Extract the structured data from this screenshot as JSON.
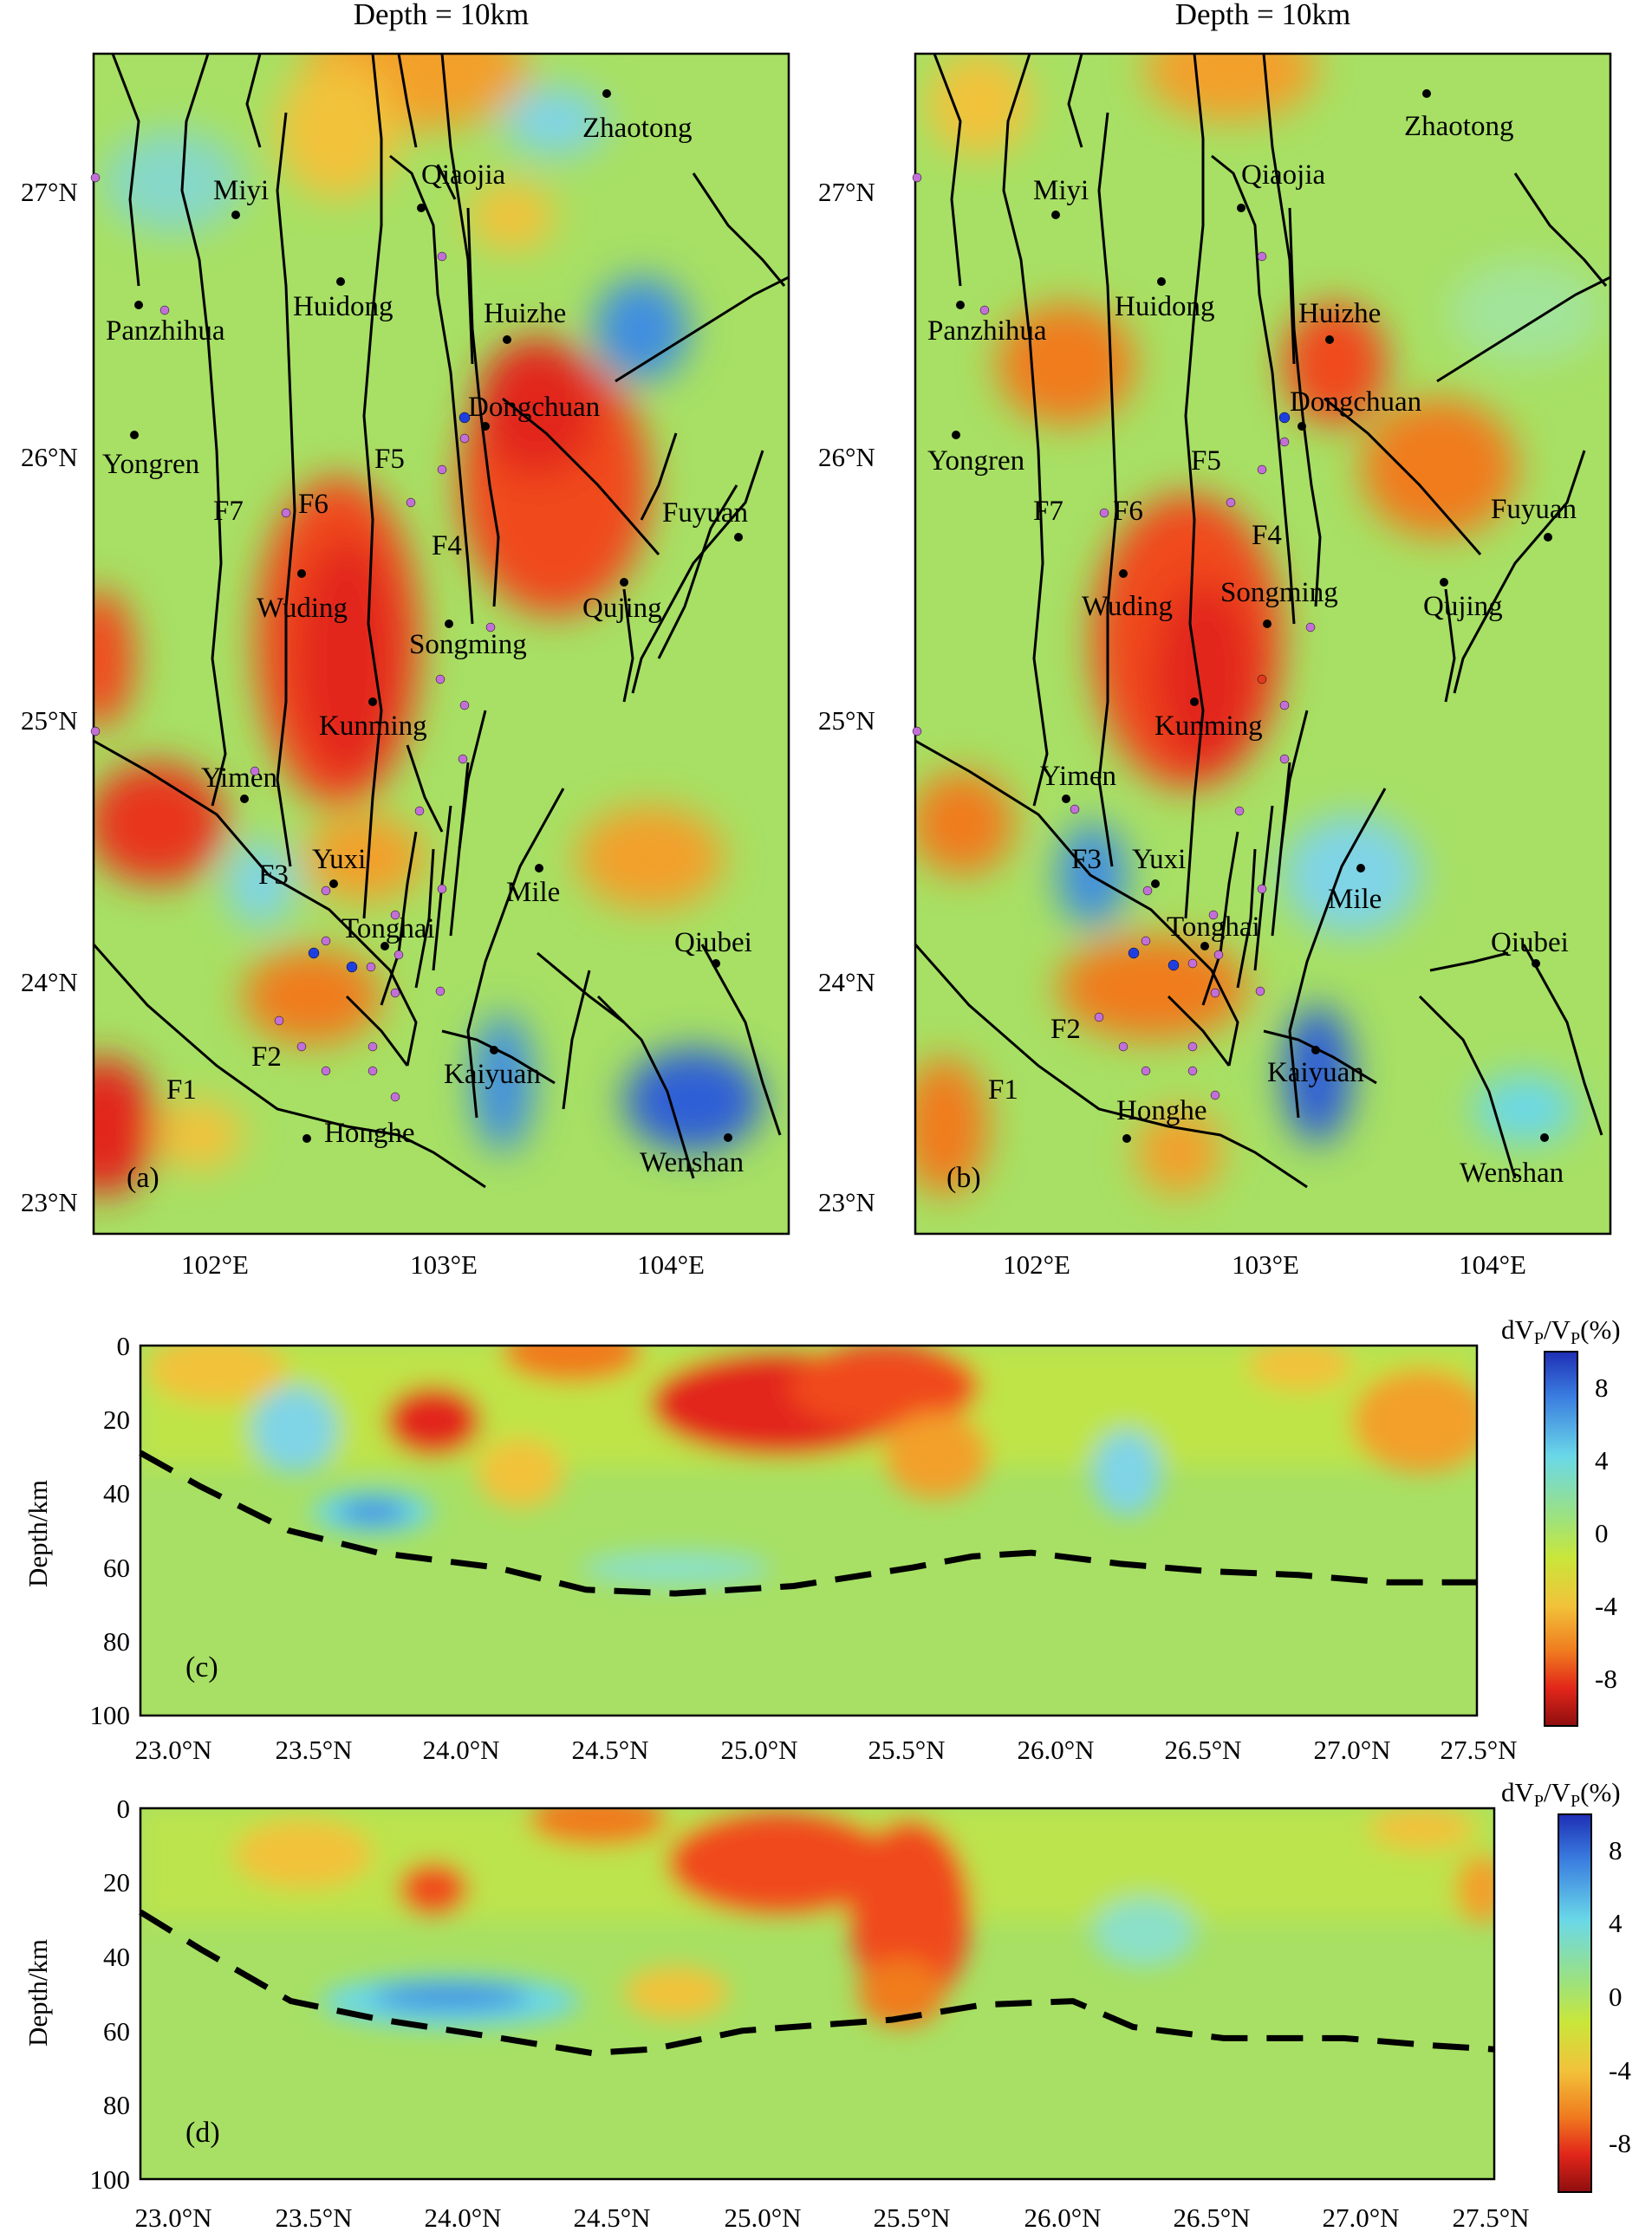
{
  "panels": {
    "a": {
      "title": "Depth = 10km",
      "label": "(a)"
    },
    "b": {
      "title": "Depth = 10km",
      "label": "(b)"
    },
    "c": {
      "label": "(c)"
    },
    "d": {
      "label": "(d)"
    }
  },
  "map_axes": {
    "lat_ticks": [
      "27°N",
      "26°N",
      "25°N",
      "24°N",
      "23°N"
    ],
    "lon_ticks": [
      "102°E",
      "103°E",
      "104°E"
    ]
  },
  "cities": [
    "Zhaotong",
    "Miyi",
    "Qiaojia",
    "Huidong",
    "Huizhe",
    "Panzhihua",
    "Dongchuan",
    "Yongren",
    "Fuyuan",
    "Wuding",
    "Qujing",
    "Songming",
    "Kunming",
    "Yimen",
    "Yuxi",
    "Mile",
    "Tonghai",
    "Qiubei",
    "Kaiyuan",
    "Honghe",
    "Wenshan"
  ],
  "faults": [
    "F1",
    "F2",
    "F3",
    "F4",
    "F5",
    "F6",
    "F7"
  ],
  "profile_axes": {
    "ylabel": "Depth/km",
    "y_ticks": [
      "0",
      "20",
      "40",
      "60",
      "80",
      "100"
    ],
    "x_ticks": [
      "23.0°N",
      "23.5°N",
      "24.0°N",
      "24.5°N",
      "25.0°N",
      "25.5°N",
      "26.0°N",
      "26.5°N",
      "27.0°N",
      "27.5°N"
    ]
  },
  "colorbar": {
    "title_prefix": "dV",
    "title_sub": "P",
    "title_mid": "/V",
    "title_suffix": "(%)",
    "ticks": [
      "8",
      "4",
      "0",
      "-4",
      "-8"
    ],
    "colors": [
      "#1f2fb5",
      "#3a7de0",
      "#6ad8e8",
      "#9fe27a",
      "#c9e63a",
      "#f2c23a",
      "#f07b1f",
      "#e2261a",
      "#8e0e0e"
    ]
  },
  "moho_c": [
    [
      23.0,
      29
    ],
    [
      23.2,
      38
    ],
    [
      23.5,
      50
    ],
    [
      23.8,
      56
    ],
    [
      24.2,
      60
    ],
    [
      24.5,
      66
    ],
    [
      24.8,
      67
    ],
    [
      25.2,
      65
    ],
    [
      25.6,
      60
    ],
    [
      25.8,
      57
    ],
    [
      26.0,
      56
    ],
    [
      26.3,
      59
    ],
    [
      26.6,
      61
    ],
    [
      26.9,
      62
    ],
    [
      27.2,
      64
    ],
    [
      27.5,
      64
    ]
  ],
  "moho_d": [
    [
      23.0,
      28
    ],
    [
      23.2,
      38
    ],
    [
      23.5,
      52
    ],
    [
      23.8,
      57
    ],
    [
      24.2,
      62
    ],
    [
      24.5,
      66
    ],
    [
      24.7,
      65
    ],
    [
      25.0,
      60
    ],
    [
      25.5,
      57
    ],
    [
      25.8,
      53
    ],
    [
      26.1,
      52
    ],
    [
      26.3,
      59
    ],
    [
      26.6,
      62
    ],
    [
      27.0,
      62
    ],
    [
      27.3,
      64
    ],
    [
      27.5,
      65
    ]
  ]
}
